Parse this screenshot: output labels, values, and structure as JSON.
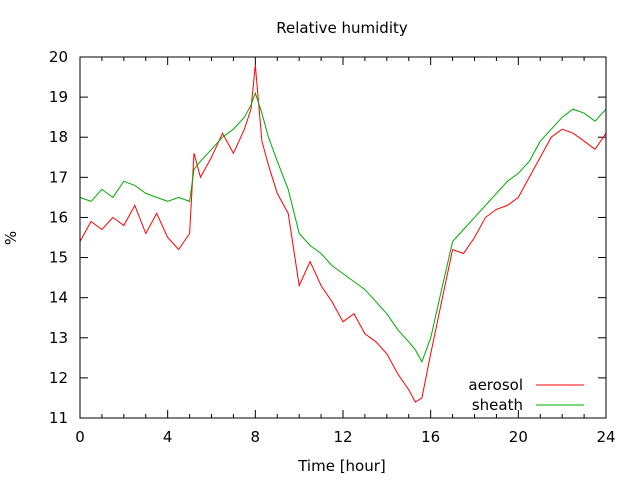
{
  "chart_data": {
    "type": "line",
    "title": "Relative humidity",
    "xlabel": "Time [hour]",
    "ylabel": "%",
    "xlim": [
      0,
      24
    ],
    "ylim": [
      11,
      20
    ],
    "xticks": [
      0,
      4,
      8,
      12,
      16,
      20,
      24
    ],
    "yticks": [
      11,
      12,
      13,
      14,
      15,
      16,
      17,
      18,
      19,
      20
    ],
    "grid": false,
    "legend_position": "bottom-right",
    "series": [
      {
        "name": "aerosol",
        "color": "#ff0000",
        "x": [
          0,
          0.5,
          1,
          1.5,
          2,
          2.5,
          3,
          3.5,
          4,
          4.5,
          5,
          5.2,
          5.5,
          6,
          6.5,
          7,
          7.5,
          7.8,
          8,
          8.3,
          8.6,
          9,
          9.5,
          10,
          10.5,
          11,
          11.5,
          12,
          12.5,
          13,
          13.5,
          14,
          14.5,
          15,
          15.3,
          15.6,
          16,
          16.5,
          17,
          17.5,
          18,
          18.5,
          19,
          19.5,
          20,
          20.5,
          21,
          21.5,
          22,
          22.5,
          23,
          23.5,
          24
        ],
        "values": [
          15.4,
          15.9,
          15.7,
          16.0,
          15.8,
          16.3,
          15.6,
          16.1,
          15.5,
          15.2,
          15.6,
          17.6,
          17.0,
          17.5,
          18.1,
          17.6,
          18.2,
          18.7,
          19.8,
          17.9,
          17.3,
          16.6,
          16.1,
          14.3,
          14.9,
          14.3,
          13.9,
          13.4,
          13.6,
          13.1,
          12.9,
          12.6,
          12.1,
          11.7,
          11.4,
          11.5,
          12.6,
          13.9,
          15.2,
          15.1,
          15.5,
          16.0,
          16.2,
          16.3,
          16.5,
          17.0,
          17.5,
          18.0,
          18.2,
          18.1,
          17.9,
          17.7,
          18.1
        ]
      },
      {
        "name": "sheath",
        "color": "#00aa00",
        "x": [
          0,
          0.5,
          1,
          1.5,
          2,
          2.5,
          3,
          3.5,
          4,
          4.5,
          5,
          5.2,
          5.5,
          6,
          6.5,
          7,
          7.5,
          7.8,
          8,
          8.3,
          8.6,
          9,
          9.5,
          10,
          10.5,
          11,
          11.5,
          12,
          12.5,
          13,
          13.5,
          14,
          14.5,
          15,
          15.3,
          15.6,
          16,
          16.5,
          17,
          17.5,
          18,
          18.5,
          19,
          19.5,
          20,
          20.5,
          21,
          21.5,
          22,
          22.5,
          23,
          23.5,
          24
        ],
        "values": [
          16.5,
          16.4,
          16.7,
          16.5,
          16.9,
          16.8,
          16.6,
          16.5,
          16.4,
          16.5,
          16.4,
          17.2,
          17.4,
          17.7,
          18.0,
          18.2,
          18.5,
          18.8,
          19.1,
          18.6,
          18.0,
          17.4,
          16.7,
          15.6,
          15.3,
          15.1,
          14.8,
          14.6,
          14.4,
          14.2,
          13.9,
          13.6,
          13.2,
          12.9,
          12.7,
          12.4,
          13.0,
          14.2,
          15.4,
          15.7,
          16.0,
          16.3,
          16.6,
          16.9,
          17.1,
          17.4,
          17.9,
          18.2,
          18.5,
          18.7,
          18.6,
          18.4,
          18.7
        ]
      }
    ]
  }
}
